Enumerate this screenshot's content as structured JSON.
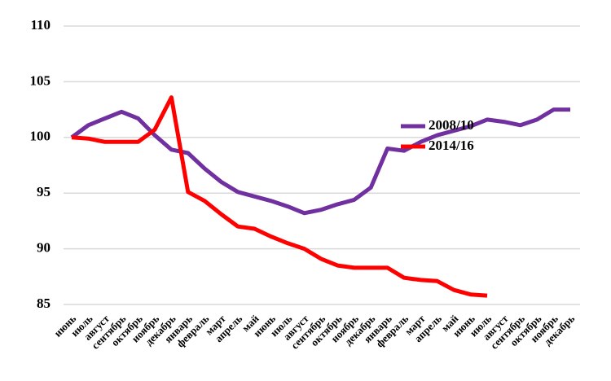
{
  "chart_data": {
    "type": "line",
    "categories": [
      "июнь",
      "июль",
      "август",
      "сентябрь",
      "октябрь",
      "ноябрь",
      "декабрь",
      "январь",
      "февраль",
      "март",
      "апрель",
      "май",
      "июнь",
      "июль",
      "август",
      "сентябрь",
      "октябрь",
      "ноябрь",
      "декабрь",
      "январь",
      "февраль",
      "март",
      "апрель",
      "май",
      "июнь",
      "июль",
      "август",
      "сентябрь",
      "октябрь",
      "ноябрь",
      "декабрь"
    ],
    "series": [
      {
        "name": "2008/10",
        "color": "#7030a0",
        "values": [
          100.0,
          101.1,
          101.7,
          102.3,
          101.7,
          100.2,
          98.9,
          98.6,
          97.2,
          96.0,
          95.1,
          94.7,
          94.3,
          93.8,
          93.2,
          93.5,
          94.0,
          94.4,
          95.5,
          99.0,
          98.8,
          99.6,
          100.2,
          100.6,
          101.0,
          101.6,
          101.4,
          101.1,
          101.6,
          102.5,
          102.5
        ]
      },
      {
        "name": "2014/16",
        "color": "#ff0000",
        "values": [
          100.0,
          99.9,
          99.6,
          99.6,
          99.6,
          100.7,
          103.6,
          95.1,
          94.3,
          93.1,
          92.0,
          91.8,
          91.1,
          90.5,
          90.0,
          89.1,
          88.5,
          88.3,
          88.3,
          88.3,
          87.4,
          87.2,
          87.1,
          86.3,
          85.9,
          85.8,
          null,
          null,
          null,
          null,
          null
        ]
      }
    ],
    "ylim": [
      85,
      110
    ],
    "yticks": [
      85,
      90,
      95,
      100,
      105,
      110
    ],
    "grid": true
  }
}
